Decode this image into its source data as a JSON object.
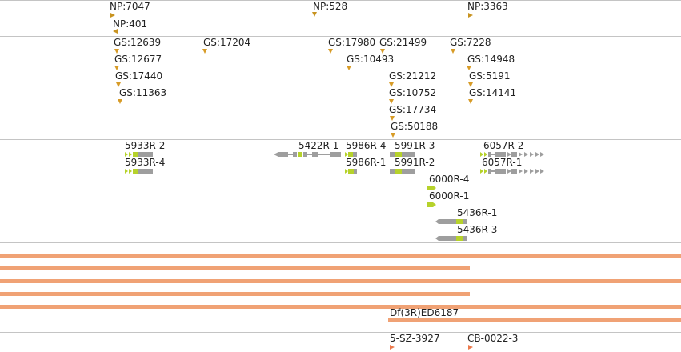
{
  "tracks": {
    "np": [
      "NP:7047",
      "NP:401",
      "NP:528",
      "NP:3363"
    ],
    "gs": [
      "GS:12639",
      "GS:17204",
      "GS:17980",
      "GS:21499",
      "GS:7228",
      "GS:12677",
      "GS:10493",
      "GS:14948",
      "GS:17440",
      "GS:21212",
      "GS:5191",
      "GS:11363",
      "GS:10752",
      "GS:14141",
      "GS:17734",
      "GS:50188"
    ],
    "transcripts": [
      "5933R-2",
      "5933R-4",
      "5422R-1",
      "5986R-4",
      "5991R-3",
      "6057R-2",
      "5986R-1",
      "5991R-2",
      "6057R-1",
      "6000R-4",
      "6000R-1",
      "5436R-1",
      "5436R-3"
    ],
    "deficiency": "Df(3R)ED6187",
    "constructs": [
      "5-SZ-3927",
      "CB-0022-3"
    ]
  },
  "colors": {
    "insertion_marker": "#d79b27",
    "deficiency_bar": "#f0a275",
    "exon_coding": "#b6d22b",
    "exon_utr": "#9e9e9e",
    "construct_marker": "#ec7a4c",
    "track_divider": "#c4c4c4"
  }
}
